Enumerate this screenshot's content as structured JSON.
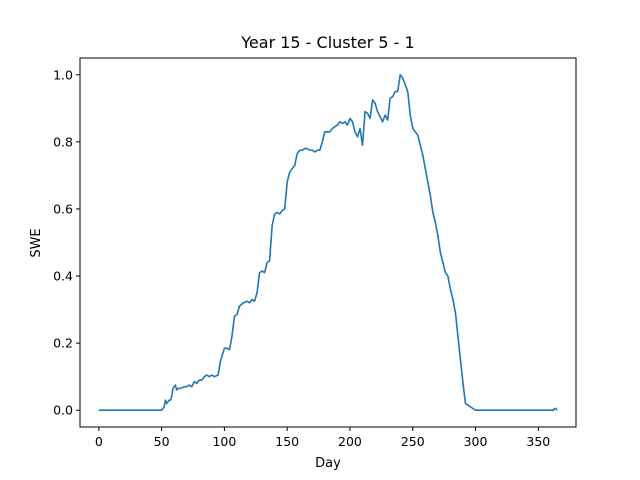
{
  "chart_data": {
    "type": "line",
    "title": "Year 15 - Cluster 5 - 1",
    "xlabel": "Day",
    "ylabel": "SWE",
    "xlim": [
      -15,
      380
    ],
    "ylim": [
      -0.05,
      1.05
    ],
    "xticks": [
      0,
      50,
      100,
      150,
      200,
      250,
      300,
      350
    ],
    "yticks": [
      0.0,
      0.2,
      0.4,
      0.6,
      0.8,
      1.0
    ],
    "ytick_labels": [
      "0.0",
      "0.2",
      "0.4",
      "0.6",
      "0.8",
      "1.0"
    ],
    "grid": false,
    "series": [
      {
        "color": "#1f77b4",
        "x": [
          0,
          50,
          52,
          53,
          54,
          55,
          56,
          57,
          58,
          59,
          60,
          61,
          62,
          63,
          65,
          68,
          70,
          72,
          74,
          76,
          78,
          80,
          82,
          84,
          86,
          88,
          90,
          92,
          95,
          97,
          98,
          100,
          102,
          104,
          106,
          108,
          110,
          112,
          115,
          118,
          120,
          122,
          124,
          126,
          128,
          130,
          132,
          134,
          136,
          138,
          140,
          142,
          144,
          146,
          148,
          150,
          152,
          154,
          156,
          158,
          160,
          162,
          164,
          166,
          168,
          170,
          172,
          174,
          176,
          178,
          180,
          182,
          184,
          186,
          188,
          190,
          192,
          194,
          196,
          198,
          200,
          202,
          204,
          206,
          208,
          210,
          212,
          214,
          216,
          218,
          220,
          222,
          224,
          226,
          228,
          230,
          232,
          234,
          236,
          238,
          240,
          242,
          244,
          246,
          248,
          250,
          252,
          254,
          256,
          258,
          260,
          262,
          264,
          266,
          268,
          270,
          272,
          274,
          276,
          278,
          280,
          282,
          284,
          286,
          288,
          290,
          292,
          300,
          350,
          360,
          362,
          363,
          364,
          365
        ],
        "y": [
          0.0,
          0.0,
          0.01,
          0.03,
          0.02,
          0.025,
          0.03,
          0.03,
          0.04,
          0.065,
          0.07,
          0.075,
          0.06,
          0.065,
          0.065,
          0.07,
          0.07,
          0.075,
          0.07,
          0.085,
          0.08,
          0.09,
          0.09,
          0.1,
          0.105,
          0.1,
          0.105,
          0.1,
          0.105,
          0.15,
          0.16,
          0.185,
          0.185,
          0.18,
          0.22,
          0.28,
          0.285,
          0.31,
          0.32,
          0.325,
          0.32,
          0.33,
          0.325,
          0.35,
          0.41,
          0.415,
          0.41,
          0.44,
          0.445,
          0.55,
          0.585,
          0.59,
          0.585,
          0.595,
          0.6,
          0.68,
          0.71,
          0.72,
          0.73,
          0.765,
          0.775,
          0.775,
          0.78,
          0.78,
          0.775,
          0.775,
          0.77,
          0.775,
          0.775,
          0.8,
          0.83,
          0.83,
          0.83,
          0.84,
          0.845,
          0.85,
          0.86,
          0.855,
          0.86,
          0.85,
          0.87,
          0.86,
          0.83,
          0.815,
          0.84,
          0.79,
          0.89,
          0.885,
          0.87,
          0.925,
          0.915,
          0.89,
          0.875,
          0.86,
          0.88,
          0.865,
          0.93,
          0.935,
          0.95,
          0.95,
          1.0,
          0.99,
          0.97,
          0.95,
          0.88,
          0.84,
          0.83,
          0.82,
          0.79,
          0.76,
          0.72,
          0.68,
          0.64,
          0.59,
          0.56,
          0.52,
          0.47,
          0.44,
          0.41,
          0.4,
          0.36,
          0.33,
          0.29,
          0.22,
          0.15,
          0.08,
          0.02,
          0.0,
          0.0,
          0.0,
          0.0,
          0.005,
          0.005,
          0.0
        ]
      }
    ]
  }
}
